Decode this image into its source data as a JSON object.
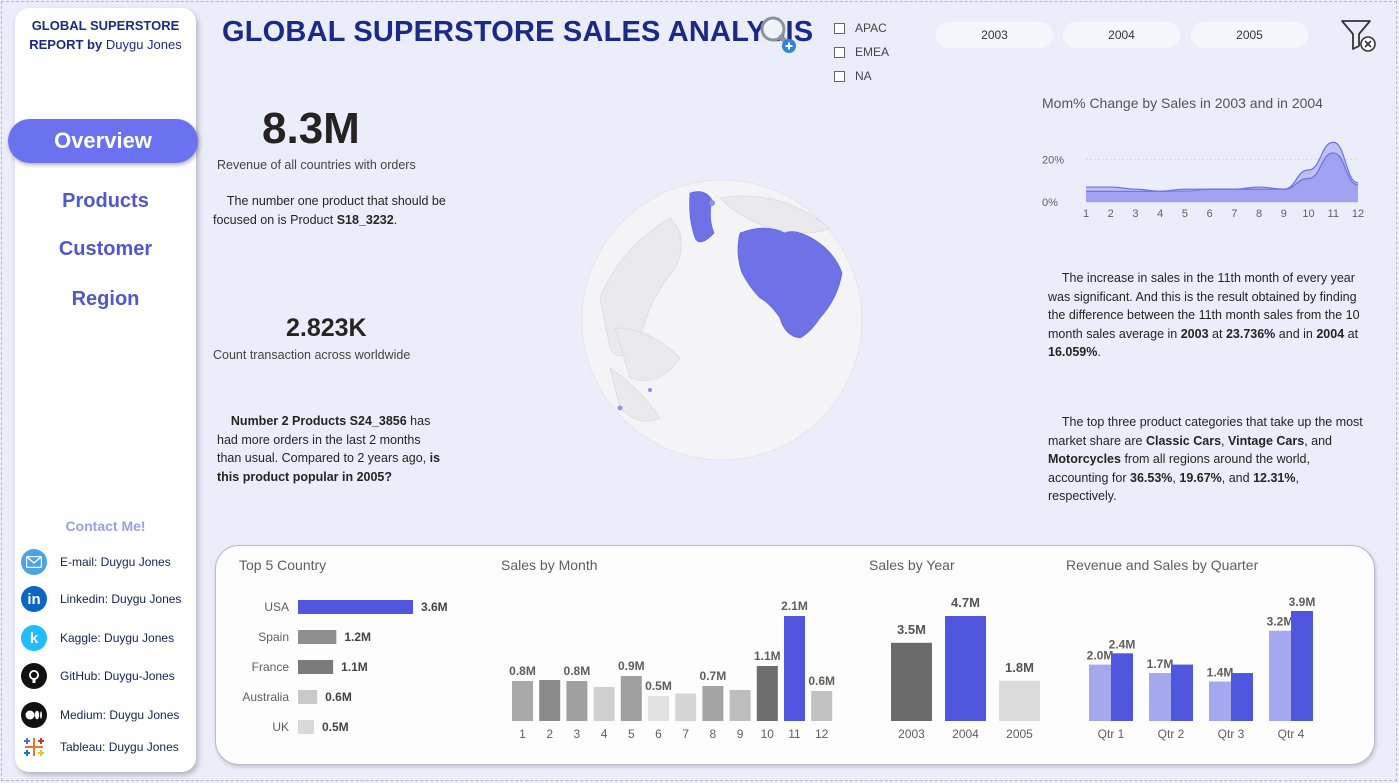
{
  "sidebar": {
    "brand_line1": "GLOBAL SUPERSTORE",
    "brand_line2_bold": "REPORT by",
    "brand_line2_author": "Duygu Jones",
    "nav": [
      {
        "label": "Overview",
        "active": true
      },
      {
        "label": "Products",
        "active": false
      },
      {
        "label": "Customer",
        "active": false
      },
      {
        "label": "Region",
        "active": false
      }
    ],
    "contact_title": "Contact Me!",
    "contacts": [
      {
        "label": "E-mail: Duygu Jones",
        "icon": "email-icon",
        "color": "#4aa3e8"
      },
      {
        "label": "Linkedin: Duygu Jones",
        "icon": "linkedin-icon",
        "color": "#0a66c2"
      },
      {
        "label": "Kaggle: Duygu Jones",
        "icon": "kaggle-icon",
        "color": "#20beff"
      },
      {
        "label": "GitHub: Duygu-Jones",
        "icon": "github-icon",
        "color": "#111111"
      },
      {
        "label": "Medium: Duygu Jones",
        "icon": "medium-icon",
        "color": "#111111"
      },
      {
        "label": "Tableau: Duygu Jones",
        "icon": "tableau-icon",
        "color": "#e8762d"
      }
    ]
  },
  "header": {
    "title": "GLOBAL SUPERSTORE SALES ANALYSIS",
    "regions": [
      "APAC",
      "EMEA",
      "NA"
    ],
    "years": [
      "2003",
      "2004",
      "2005"
    ]
  },
  "kpis": {
    "revenue_value": "8.3M",
    "revenue_label": "Revenue of all countries with orders",
    "product_focus_pre": "The number one product that should be focused on is Product",
    "product_focus_id": "S18_3232",
    "count_value": "2.823K",
    "count_label": "Count transaction across worldwide",
    "p2_bold": "Number 2 Products S24_3856",
    "p2_text": "has had more orders in the last 2 months than usual. Compared to 2 years ago,",
    "p2_bold_end": "is this product popular in 2005?"
  },
  "insights": {
    "sales_text_1": "The increase in sales in the 11th month of every year was significant. And this is the result obtained by finding the difference between the 11th month sales from the 10 month sales average in",
    "y2003": "2003",
    "at1": "at",
    "pct2003": "23.736%",
    "and_in": "and in",
    "y2004": "2004",
    "at2": "at",
    "pct2004": "16.059%",
    "cat_text_1": "The top three product categories that take up the most market share are",
    "cat1": "Classic Cars",
    "cat2": "Vintage Cars",
    "cat_and": "and",
    "cat3": "Motorcycles",
    "cat_text_2": "from all regions around the world, accounting for",
    "pct1": "36.53%",
    "pct2": "19.67%",
    "pct3": "12.31%",
    "cat_text_3": "respectively."
  },
  "colors": {
    "accent": "#5056de",
    "nav_active": "#6b72ef",
    "brand": "#1b2a86",
    "grey_dark": "#6b6b6b",
    "grey_mid": "#9a9a9a",
    "grey_light": "#d6d6d6"
  },
  "chart_data": [
    {
      "id": "mom",
      "type": "area",
      "title": "Mom% Change by Sales in 2003 and in 2004",
      "x": [
        1,
        2,
        3,
        4,
        5,
        6,
        7,
        8,
        9,
        10,
        11,
        12
      ],
      "y_ticks": [
        "0%",
        "20%"
      ],
      "ylim": [
        0,
        30
      ],
      "series": [
        {
          "values": [
            7,
            7,
            6,
            5,
            5,
            6,
            6,
            7,
            6,
            15,
            28,
            9
          ]
        },
        {
          "values": [
            5,
            5,
            5,
            5,
            6,
            6,
            6,
            6,
            6,
            11,
            23,
            8
          ]
        }
      ]
    },
    {
      "id": "country",
      "type": "bar",
      "title": "Top 5 Country",
      "categories": [
        "USA",
        "Spain",
        "France",
        "Australia",
        "UK"
      ],
      "values": [
        3.6,
        1.2,
        1.1,
        0.6,
        0.5
      ],
      "labels": [
        "3.6M",
        "1.2M",
        "1.1M",
        "0.6M",
        "0.5M"
      ],
      "colors": [
        "#5056de",
        "#8f8f8f",
        "#7a7a7a",
        "#c9c9c9",
        "#d9d9d9"
      ]
    },
    {
      "id": "month",
      "type": "bar",
      "title": "Sales by Month",
      "categories": [
        "1",
        "2",
        "3",
        "4",
        "5",
        "6",
        "7",
        "8",
        "9",
        "10",
        "11",
        "12"
      ],
      "values": [
        0.8,
        0.82,
        0.8,
        0.68,
        0.9,
        0.5,
        0.55,
        0.7,
        0.62,
        1.1,
        2.1,
        0.6
      ],
      "labels": [
        "0.8M",
        "",
        "0.8M",
        "",
        "0.9M",
        "0.5M",
        "",
        "0.7M",
        "",
        "1.1M",
        "2.1M",
        "0.6M"
      ],
      "colors": [
        "#a9a9a9",
        "#8a8a8a",
        "#a0a0a0",
        "#cfcfcf",
        "#9f9f9f",
        "#e2e2e2",
        "#d6d6d6",
        "#a4a4a4",
        "#bdbdbd",
        "#6e6e6e",
        "#5056de",
        "#c2c2c2"
      ]
    },
    {
      "id": "year",
      "type": "bar",
      "title": "Sales by Year",
      "categories": [
        "2003",
        "2004",
        "2005"
      ],
      "values": [
        3.5,
        4.7,
        1.8
      ],
      "labels": [
        "3.5M",
        "4.7M",
        "1.8M"
      ],
      "colors": [
        "#6b6b6b",
        "#5056de",
        "#dcdcdc"
      ]
    },
    {
      "id": "quarter",
      "type": "bar",
      "title": "Revenue and Sales by Quarter",
      "categories": [
        "Qtr 1",
        "Qtr 2",
        "Qtr 3",
        "Qtr 4"
      ],
      "series": [
        {
          "values": [
            2.0,
            1.7,
            1.4,
            3.2
          ],
          "labels": [
            "2.0M",
            "1.7M",
            "1.4M",
            "3.2M"
          ],
          "color": "#a4a8ef"
        },
        {
          "values": [
            2.4,
            2.0,
            1.7,
            3.9
          ],
          "labels": [
            "2.4M",
            "",
            "",
            "3.9M"
          ],
          "color": "#5056de"
        }
      ]
    }
  ]
}
